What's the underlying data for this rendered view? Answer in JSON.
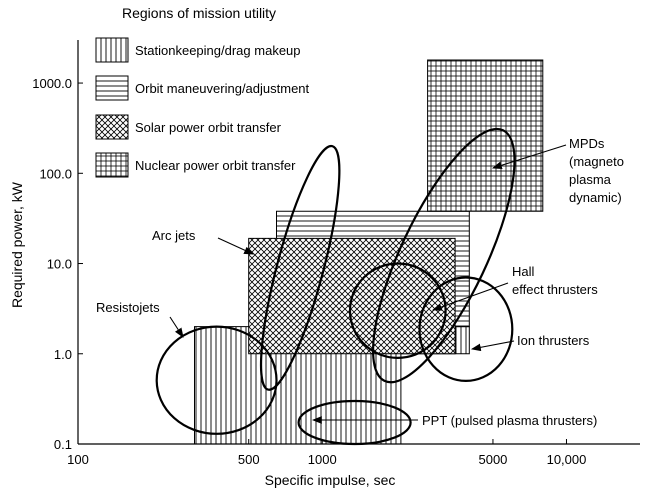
{
  "chart_data": {
    "type": "area",
    "title": "Regions of mission utility",
    "xlabel": "Specific impulse, sec",
    "ylabel": "Required power, kW",
    "x_scale": "log",
    "y_scale": "log",
    "xlim": [
      100,
      20000
    ],
    "ylim": [
      0.1,
      3000
    ],
    "x_ticks": [
      {
        "value": 100,
        "label": "100"
      },
      {
        "value": 500,
        "label": "500"
      },
      {
        "value": 1000,
        "label": "1000"
      },
      {
        "value": 5000,
        "label": "5000"
      },
      {
        "value": 10000,
        "label": "10,000"
      }
    ],
    "y_ticks": [
      {
        "value": 0.1,
        "label": "0.1"
      },
      {
        "value": 1,
        "label": "1.0"
      },
      {
        "value": 10,
        "label": "10.0"
      },
      {
        "value": 100,
        "label": "100.0"
      },
      {
        "value": 1000,
        "label": "1000.0"
      }
    ],
    "grid": false,
    "legend_position": "top-left",
    "regions": [
      {
        "name": "Stationkeeping/drag makeup",
        "pattern": "vertical-hatch",
        "polygon": [
          [
            300,
            0.1
          ],
          [
            2100,
            0.1
          ],
          [
            2100,
            1.0
          ],
          [
            4000,
            1.0
          ],
          [
            4000,
            2.0
          ],
          [
            300,
            2.0
          ]
        ]
      },
      {
        "name": "Orbit maneuvering/adjustment",
        "pattern": "horizontal-hatch",
        "polygon": [
          [
            650,
            2.0
          ],
          [
            4000,
            2.0
          ],
          [
            4000,
            38
          ],
          [
            650,
            38
          ]
        ]
      },
      {
        "name": "Solar power orbit transfer",
        "pattern": "cross-hatch",
        "polygon": [
          [
            500,
            1.0
          ],
          [
            3500,
            1.0
          ],
          [
            3500,
            19
          ],
          [
            500,
            19
          ]
        ]
      },
      {
        "name": "Nuclear power orbit transfer",
        "pattern": "grid-hatch",
        "polygon": [
          [
            2700,
            38
          ],
          [
            8000,
            38
          ],
          [
            8000,
            1800
          ],
          [
            2700,
            1800
          ]
        ]
      }
    ],
    "thrusters": [
      {
        "name": "Resistojets",
        "ellipse": {
          "x_range": [
            210,
            650
          ],
          "i_range": [
            0.13,
            2.0
          ]
        }
      },
      {
        "name": "Arc jets",
        "ellipse": {
          "x_range": [
            600,
            1100
          ],
          "i_range": [
            0.4,
            200
          ]
        }
      },
      {
        "name": "MPDs (magneto plasma dynamic)",
        "ellipse": {
          "x_range": [
            1800,
            5500
          ],
          "i_range": [
            0.5,
            300
          ]
        }
      },
      {
        "name": "Hall effect thrusters",
        "ellipse": {
          "x_range": [
            1300,
            3200
          ],
          "i_range": [
            0.9,
            10
          ]
        }
      },
      {
        "name": "Ion thrusters",
        "ellipse": {
          "x_range": [
            2500,
            6000
          ],
          "i_range": [
            0.5,
            7
          ]
        }
      },
      {
        "name": "PPT (pulsed plasma thrusters)",
        "ellipse": {
          "x_range": [
            800,
            2300
          ],
          "i_range": [
            0.1,
            0.3
          ]
        }
      }
    ],
    "annotations": [
      "MPDs",
      "(magneto",
      "plasma",
      "dynamic)",
      "Hall",
      "effect thrusters",
      "Ion thrusters",
      "Arc jets",
      "Resistojets",
      "PPT (pulsed plasma thrusters)"
    ]
  }
}
